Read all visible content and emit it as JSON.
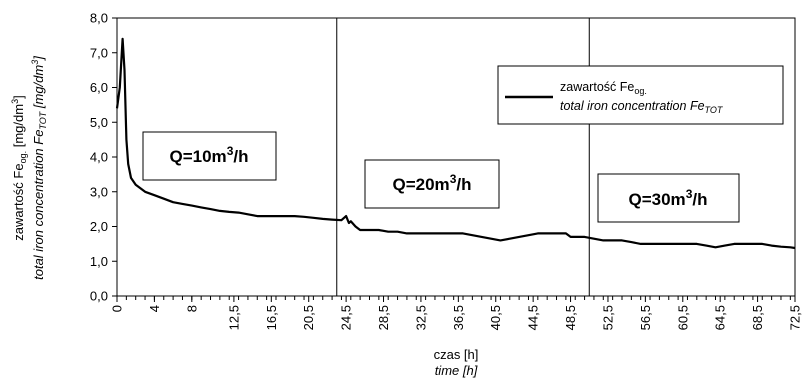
{
  "chart_data": {
    "type": "line",
    "xlabel": "czas [h]",
    "xlabel_en": "time [h]",
    "ylabel": {
      "pl_prefix": "zawartość Fe",
      "pl_sub": "og.",
      "pl_suffix": " [mg/dm",
      "pl_sup": "3",
      "pl_end": "]",
      "en_prefix": "total iron concentration Fe",
      "en_sub": "TOT",
      "en_suffix": " [mg/dm",
      "en_sup": "3",
      "en_end": "]"
    },
    "xlim": [
      0,
      72.5
    ],
    "ylim": [
      0,
      8
    ],
    "y_ticks": [
      "0,0",
      "1,0",
      "2,0",
      "3,0",
      "4,0",
      "5,0",
      "6,0",
      "7,0",
      "8,0"
    ],
    "x_ticks": [
      {
        "value": 0,
        "label": "0"
      },
      {
        "value": 4,
        "label": "4"
      },
      {
        "value": 8,
        "label": "8"
      },
      {
        "value": 12.5,
        "label": "12,5"
      },
      {
        "value": 16.5,
        "label": "16,5"
      },
      {
        "value": 20.5,
        "label": "20,5"
      },
      {
        "value": 24.5,
        "label": "24,5"
      },
      {
        "value": 28.5,
        "label": "28,5"
      },
      {
        "value": 32.5,
        "label": "32,5"
      },
      {
        "value": 36.5,
        "label": "36,5"
      },
      {
        "value": 40.5,
        "label": "40,5"
      },
      {
        "value": 44.5,
        "label": "44,5"
      },
      {
        "value": 48.5,
        "label": "48,5"
      },
      {
        "value": 52.5,
        "label": "52,5"
      },
      {
        "value": 56.5,
        "label": "56,5"
      },
      {
        "value": 60.5,
        "label": "60,5"
      },
      {
        "value": 64.5,
        "label": "64,5"
      },
      {
        "value": 68.5,
        "label": "68,5"
      },
      {
        "value": 72.5,
        "label": "72,5"
      }
    ],
    "x_minor_step": 1,
    "vertical_lines": [
      23.5,
      50.5
    ],
    "grid": false,
    "legend": {
      "placement": "top-right",
      "pl_prefix": "zawartość Fe",
      "pl_sub": "og.",
      "en_prefix": "total iron concentration Fe",
      "en_sub": "TOT"
    },
    "annotations": [
      {
        "prefix": "Q=10m",
        "sup": "3",
        "suffix": "/h"
      },
      {
        "prefix": "Q=20m",
        "sup": "3",
        "suffix": "/h"
      },
      {
        "prefix": "Q=30m",
        "sup": "3",
        "suffix": "/h"
      }
    ],
    "series": [
      {
        "color": "#000000",
        "x": [
          0,
          0.3,
          0.6,
          0.8,
          1.0,
          1.2,
          1.5,
          2.0,
          2.5,
          3.0,
          4.0,
          5.0,
          6.0,
          7.0,
          8.0,
          9.0,
          10.0,
          11.0,
          12.0,
          13.0,
          14.0,
          15.0,
          16.0,
          17.0,
          18.0,
          19.0,
          20.0,
          21.0,
          22.0,
          23.0,
          24.0,
          24.5,
          24.8,
          25.0,
          25.5,
          26.0,
          27.0,
          28.0,
          29.0,
          30.0,
          31.0,
          32.0,
          33.0,
          34.0,
          35.0,
          36.0,
          37.0,
          38.0,
          39.0,
          40.0,
          41.0,
          42.0,
          43.0,
          44.0,
          45.0,
          46.0,
          47.0,
          48.0,
          48.5,
          49.0,
          50.0,
          51.0,
          52.0,
          53.0,
          54.0,
          55.0,
          56.0,
          57.0,
          58.0,
          59.0,
          60.0,
          61.0,
          62.0,
          63.0,
          64.0,
          65.0,
          66.0,
          67.0,
          68.0,
          69.0,
          70.0,
          71.0,
          72.0,
          72.5
        ],
        "y": [
          5.4,
          6.0,
          7.4,
          6.5,
          4.5,
          3.8,
          3.4,
          3.2,
          3.1,
          3.0,
          2.9,
          2.8,
          2.7,
          2.65,
          2.6,
          2.55,
          2.5,
          2.45,
          2.42,
          2.4,
          2.35,
          2.3,
          2.3,
          2.3,
          2.3,
          2.3,
          2.28,
          2.25,
          2.22,
          2.2,
          2.18,
          2.3,
          2.1,
          2.15,
          2.0,
          1.9,
          1.9,
          1.9,
          1.85,
          1.85,
          1.8,
          1.8,
          1.8,
          1.8,
          1.8,
          1.8,
          1.8,
          1.75,
          1.7,
          1.65,
          1.6,
          1.65,
          1.7,
          1.75,
          1.8,
          1.8,
          1.8,
          1.8,
          1.7,
          1.7,
          1.7,
          1.65,
          1.6,
          1.6,
          1.6,
          1.55,
          1.5,
          1.5,
          1.5,
          1.5,
          1.5,
          1.5,
          1.5,
          1.45,
          1.4,
          1.45,
          1.5,
          1.5,
          1.5,
          1.5,
          1.45,
          1.42,
          1.4,
          1.38
        ]
      }
    ]
  }
}
